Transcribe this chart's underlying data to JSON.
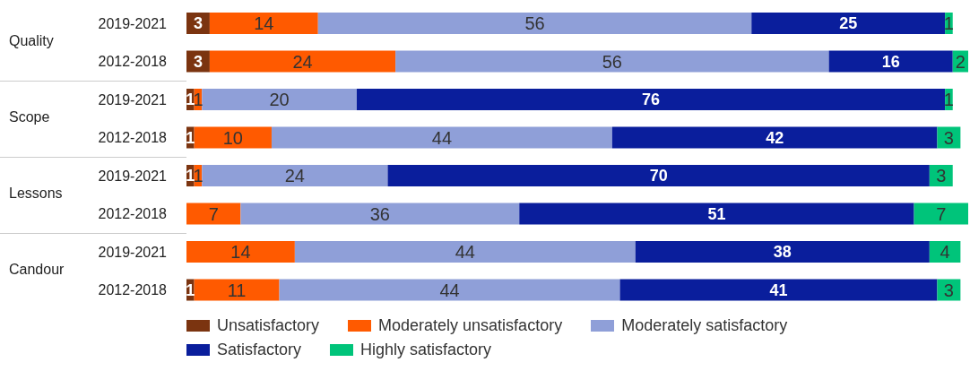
{
  "chart_data": {
    "type": "bar",
    "orientation": "horizontal",
    "stacked": true,
    "data_labels": true,
    "tick_labels": "y",
    "legend": "bottom",
    "xlim": [
      0,
      101
    ],
    "categories": [
      "2019-2021",
      "2012-2018",
      "2019-2021",
      "2012-2018",
      "2019-2021",
      "2012-2018",
      "2019-2021",
      "2012-2018"
    ],
    "annotations": [
      "Quality",
      "Scope",
      "Lessons",
      "Candour"
    ],
    "series": [
      {
        "name": "Unsatisfactory",
        "color": "#7b3410",
        "values": [
          3,
          3,
          1,
          1,
          1,
          null,
          null,
          1
        ]
      },
      {
        "name": "Moderately unsatisfactory",
        "color": "#ff5a00",
        "values": [
          14,
          24,
          1,
          10,
          1,
          7,
          14,
          11
        ]
      },
      {
        "name": "Moderately satisfactory",
        "color": "#8f9fd8",
        "values": [
          56,
          56,
          20,
          44,
          24,
          36,
          44,
          44
        ]
      },
      {
        "name": "Satisfactory",
        "color": "#0a1e9c",
        "values": [
          25,
          16,
          76,
          42,
          70,
          51,
          38,
          41
        ]
      },
      {
        "name": "Highly satisfactory",
        "color": "#00c47a",
        "values": [
          1,
          2,
          1,
          3,
          3,
          7,
          4,
          3
        ]
      }
    ]
  }
}
